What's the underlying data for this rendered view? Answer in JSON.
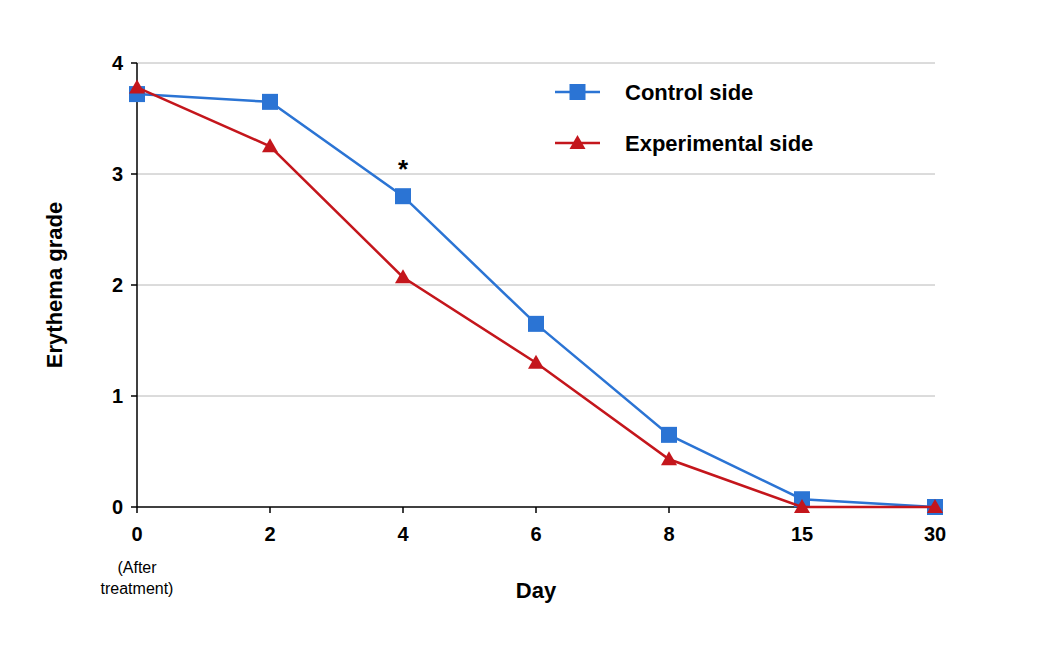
{
  "chart_data": {
    "type": "line",
    "x_label": "Day",
    "y_label": "Erythema grade",
    "categories": [
      "0",
      "2",
      "4",
      "6",
      "8",
      "15",
      "30"
    ],
    "x_note": {
      "text": "(After treatment)",
      "category": "0"
    },
    "annotations": [
      {
        "text": "*",
        "category": "4"
      }
    ],
    "series": [
      {
        "name": "Control side",
        "color": "#2b74d4",
        "marker": "square",
        "line_style": "solid",
        "values": [
          3.72,
          3.65,
          2.8,
          1.65,
          0.65,
          0.07,
          0.0
        ]
      },
      {
        "name": "Experimental side",
        "color": "#c4161c",
        "marker": "triangle",
        "line_style": "solid",
        "values": [
          3.78,
          3.25,
          2.07,
          1.3,
          0.43,
          0.0,
          0.0
        ]
      }
    ],
    "ylim": [
      0,
      4
    ],
    "yticks": [
      0,
      1,
      2,
      3,
      4
    ],
    "grid": true,
    "legend": "top-right"
  }
}
